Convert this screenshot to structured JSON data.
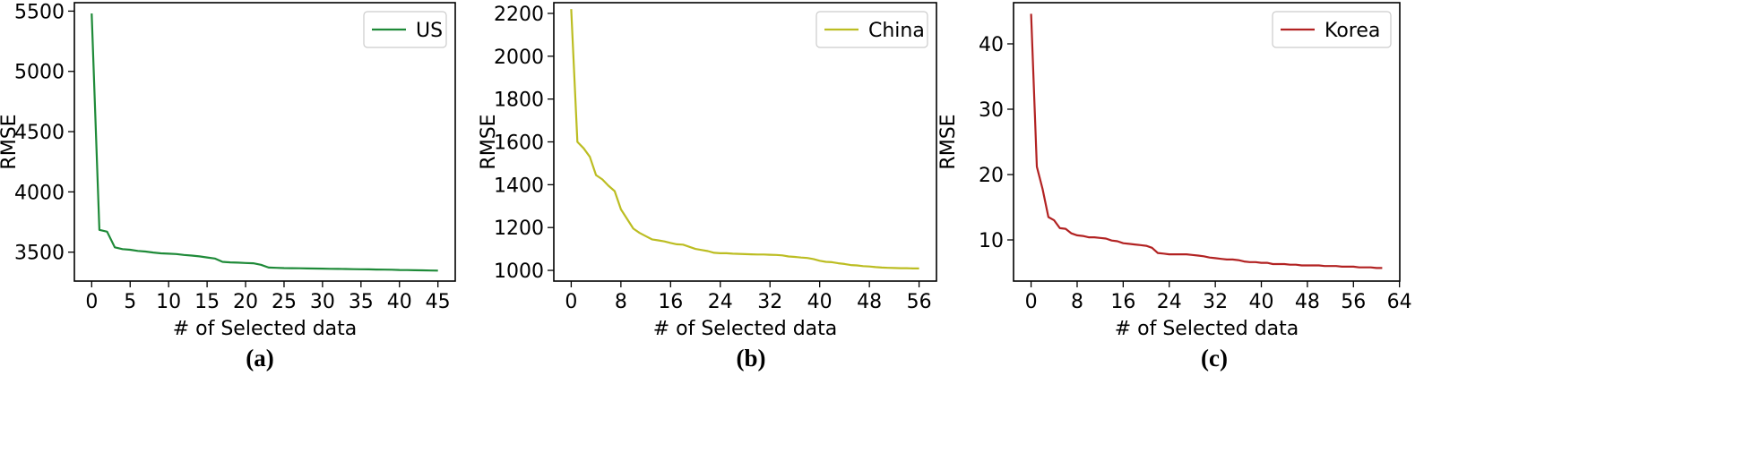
{
  "chart_data": [
    {
      "type": "line",
      "panel_label": "(a)",
      "xlabel": "# of Selected data",
      "ylabel": "RMSE",
      "xlim": [
        -2.25,
        47.25
      ],
      "ylim": [
        3260,
        5570
      ],
      "xticks": [
        0,
        5,
        10,
        15,
        20,
        25,
        30,
        35,
        40,
        45
      ],
      "yticks": [
        3500,
        4000,
        4500,
        5000,
        5500
      ],
      "legend_position": "upper right",
      "series": [
        {
          "name": "US",
          "color": "#1e8a38",
          "x": [
            0,
            1,
            2,
            3,
            4,
            5,
            6,
            7,
            8,
            9,
            10,
            11,
            12,
            13,
            14,
            15,
            16,
            17,
            18,
            19,
            20,
            21,
            22,
            23,
            24,
            25,
            26,
            27,
            28,
            29,
            30,
            31,
            32,
            33,
            34,
            35,
            36,
            37,
            38,
            39,
            40,
            41,
            42,
            43,
            44,
            45
          ],
          "y": [
            5480,
            3685,
            3670,
            3540,
            3525,
            3520,
            3510,
            3505,
            3497,
            3490,
            3487,
            3484,
            3477,
            3472,
            3465,
            3456,
            3447,
            3420,
            3415,
            3413,
            3410,
            3408,
            3395,
            3372,
            3370,
            3368,
            3367,
            3366,
            3365,
            3364,
            3363,
            3362,
            3361,
            3360,
            3359,
            3358,
            3357,
            3356,
            3355,
            3354,
            3352,
            3351,
            3350,
            3349,
            3348,
            3347
          ]
        }
      ]
    },
    {
      "type": "line",
      "panel_label": "(b)",
      "xlabel": "# of Selected data",
      "ylabel": "RMSE",
      "xlim": [
        -2.8,
        58.8
      ],
      "ylim": [
        950,
        2250
      ],
      "xticks": [
        0,
        8,
        16,
        24,
        32,
        40,
        48,
        56
      ],
      "yticks": [
        1000,
        1200,
        1400,
        1600,
        1800,
        2000,
        2200
      ],
      "legend_position": "upper right",
      "series": [
        {
          "name": "China",
          "color": "#bcbd22",
          "x": [
            0,
            1,
            2,
            3,
            4,
            5,
            6,
            7,
            8,
            9,
            10,
            11,
            12,
            13,
            14,
            15,
            16,
            17,
            18,
            19,
            20,
            21,
            22,
            23,
            24,
            25,
            26,
            27,
            28,
            29,
            30,
            31,
            32,
            33,
            34,
            35,
            36,
            37,
            38,
            39,
            40,
            41,
            42,
            43,
            44,
            45,
            46,
            47,
            48,
            49,
            50,
            51,
            52,
            53,
            54,
            55,
            56
          ],
          "y": [
            2220,
            1600,
            1570,
            1530,
            1445,
            1425,
            1395,
            1370,
            1285,
            1240,
            1195,
            1175,
            1160,
            1145,
            1140,
            1135,
            1128,
            1122,
            1120,
            1110,
            1100,
            1095,
            1090,
            1082,
            1080,
            1080,
            1078,
            1077,
            1076,
            1075,
            1074,
            1074,
            1073,
            1072,
            1070,
            1065,
            1063,
            1060,
            1058,
            1053,
            1045,
            1040,
            1038,
            1033,
            1030,
            1025,
            1023,
            1020,
            1018,
            1015,
            1013,
            1012,
            1011,
            1010,
            1010,
            1009,
            1009
          ]
        }
      ]
    },
    {
      "type": "line",
      "panel_label": "(c)",
      "xlabel": "# of Selected data",
      "ylabel": "RMSE",
      "xlim": [
        -3.05,
        64.05
      ],
      "ylim": [
        3.7,
        46.3
      ],
      "xticks": [
        0,
        8,
        16,
        24,
        32,
        40,
        48,
        56,
        64
      ],
      "yticks": [
        10,
        20,
        30,
        40
      ],
      "legend_position": "upper right",
      "series": [
        {
          "name": "Korea",
          "color": "#b22222",
          "x": [
            0,
            1,
            2,
            3,
            4,
            5,
            6,
            7,
            8,
            9,
            10,
            11,
            12,
            13,
            14,
            15,
            16,
            17,
            18,
            19,
            20,
            21,
            22,
            23,
            24,
            25,
            26,
            27,
            28,
            29,
            30,
            31,
            32,
            33,
            34,
            35,
            36,
            37,
            38,
            39,
            40,
            41,
            42,
            43,
            44,
            45,
            46,
            47,
            48,
            49,
            50,
            51,
            52,
            53,
            54,
            55,
            56,
            57,
            58,
            59,
            60,
            61
          ],
          "y": [
            44.6,
            21.2,
            17.8,
            13.5,
            13.0,
            11.8,
            11.7,
            11.0,
            10.7,
            10.6,
            10.4,
            10.4,
            10.3,
            10.2,
            9.9,
            9.8,
            9.5,
            9.4,
            9.3,
            9.2,
            9.1,
            8.8,
            8.0,
            7.9,
            7.8,
            7.8,
            7.8,
            7.8,
            7.7,
            7.6,
            7.5,
            7.3,
            7.2,
            7.1,
            7.0,
            7.0,
            6.9,
            6.7,
            6.6,
            6.6,
            6.5,
            6.5,
            6.3,
            6.3,
            6.3,
            6.2,
            6.2,
            6.1,
            6.1,
            6.1,
            6.1,
            6.0,
            6.0,
            6.0,
            5.9,
            5.9,
            5.9,
            5.8,
            5.8,
            5.8,
            5.7,
            5.7
          ]
        }
      ]
    }
  ]
}
